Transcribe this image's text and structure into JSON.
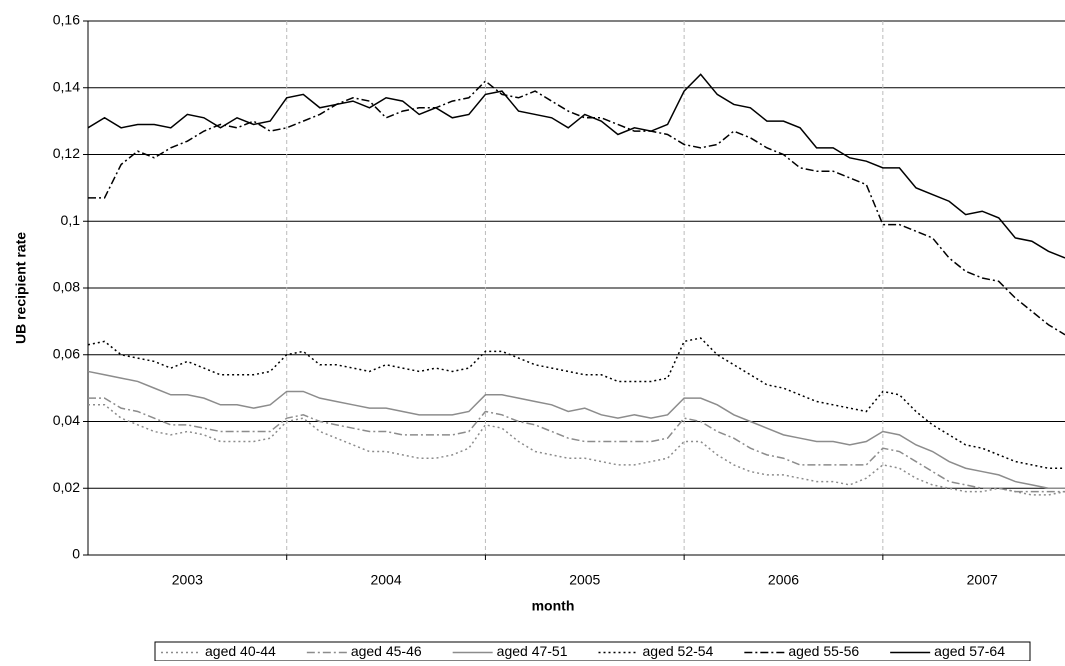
{
  "chart_data": {
    "type": "line",
    "y_label": "UB recipient rate",
    "x_label": "month",
    "categories": [
      null,
      null,
      null,
      null,
      null,
      null,
      "2003",
      null,
      null,
      null,
      null,
      null,
      null,
      null,
      null,
      null,
      null,
      null,
      "2004",
      null,
      null,
      null,
      null,
      null,
      null,
      null,
      null,
      null,
      null,
      null,
      "2005",
      null,
      null,
      null,
      null,
      null,
      null,
      null,
      null,
      null,
      null,
      null,
      "2006",
      null,
      null,
      null,
      null,
      null,
      null,
      null,
      null,
      null,
      null,
      null,
      "2007",
      null,
      null,
      null,
      null,
      null
    ],
    "ylim": [
      0,
      0.16
    ],
    "yticks": [
      0,
      {
        "value": 0.02,
        "label": "0,02"
      },
      {
        "value": 0.04,
        "label": "0,04"
      },
      {
        "value": 0.06,
        "label": "0,06"
      },
      {
        "value": 0.08,
        "label": "0,08"
      },
      {
        "value": 0.1,
        "label": "0,1"
      },
      {
        "value": 0.12,
        "label": "0,12"
      },
      {
        "value": 0.14,
        "label": "0,14"
      },
      {
        "value": 0.16,
        "label": "0,16"
      }
    ],
    "grid": true,
    "legend": "bottom",
    "series": [
      {
        "name": "aged 40-44",
        "color": "#8c8c8c",
        "dash": "2,3",
        "values": [
          0.045,
          0.045,
          0.041,
          0.039,
          0.037,
          0.036,
          0.037,
          0.036,
          0.034,
          0.034,
          0.034,
          0.035,
          0.04,
          0.041,
          0.037,
          0.035,
          0.033,
          0.031,
          0.031,
          0.03,
          0.029,
          0.029,
          0.03,
          0.032,
          0.039,
          0.038,
          0.034,
          0.031,
          0.03,
          0.029,
          0.029,
          0.028,
          0.027,
          0.027,
          0.028,
          0.029,
          0.034,
          0.034,
          0.03,
          0.027,
          0.025,
          0.024,
          0.024,
          0.023,
          0.022,
          0.022,
          0.021,
          0.023,
          0.027,
          0.026,
          0.023,
          0.021,
          0.02,
          0.019,
          0.019,
          0.02,
          0.019,
          0.018,
          0.018,
          0.019
        ]
      },
      {
        "name": "aged 45-46",
        "color": "#8c8c8c",
        "dash": "8,3,2,3",
        "values": [
          0.047,
          0.047,
          0.044,
          0.043,
          0.041,
          0.039,
          0.039,
          0.038,
          0.037,
          0.037,
          0.037,
          0.037,
          0.041,
          0.042,
          0.04,
          0.039,
          0.038,
          0.037,
          0.037,
          0.036,
          0.036,
          0.036,
          0.036,
          0.037,
          0.043,
          0.042,
          0.04,
          0.039,
          0.037,
          0.035,
          0.034,
          0.034,
          0.034,
          0.034,
          0.034,
          0.035,
          0.041,
          0.04,
          0.037,
          0.035,
          0.032,
          0.03,
          0.029,
          0.027,
          0.027,
          0.027,
          0.027,
          0.027,
          0.032,
          0.031,
          0.028,
          0.025,
          0.022,
          0.021,
          0.02,
          0.02,
          0.019,
          0.019,
          0.019,
          0.019
        ]
      },
      {
        "name": "aged 47-51",
        "color": "#8c8c8c",
        "dash": "none",
        "values": [
          0.055,
          0.054,
          0.053,
          0.052,
          0.05,
          0.048,
          0.048,
          0.047,
          0.045,
          0.045,
          0.044,
          0.045,
          0.049,
          0.049,
          0.047,
          0.046,
          0.045,
          0.044,
          0.044,
          0.043,
          0.042,
          0.042,
          0.042,
          0.043,
          0.048,
          0.048,
          0.047,
          0.046,
          0.045,
          0.043,
          0.044,
          0.042,
          0.041,
          0.042,
          0.041,
          0.042,
          0.047,
          0.047,
          0.045,
          0.042,
          0.04,
          0.038,
          0.036,
          0.035,
          0.034,
          0.034,
          0.033,
          0.034,
          0.037,
          0.036,
          0.033,
          0.031,
          0.028,
          0.026,
          0.025,
          0.024,
          0.022,
          0.021,
          0.02,
          0.02
        ]
      },
      {
        "name": "aged 52-54",
        "color": "#000000",
        "dash": "2,3",
        "values": [
          0.063,
          0.064,
          0.06,
          0.059,
          0.058,
          0.056,
          0.058,
          0.056,
          0.054,
          0.054,
          0.054,
          0.055,
          0.06,
          0.061,
          0.057,
          0.057,
          0.056,
          0.055,
          0.057,
          0.056,
          0.055,
          0.056,
          0.055,
          0.056,
          0.061,
          0.061,
          0.059,
          0.057,
          0.056,
          0.055,
          0.054,
          0.054,
          0.052,
          0.052,
          0.052,
          0.053,
          0.064,
          0.065,
          0.06,
          0.057,
          0.054,
          0.051,
          0.05,
          0.048,
          0.046,
          0.045,
          0.044,
          0.043,
          0.049,
          0.048,
          0.043,
          0.039,
          0.036,
          0.033,
          0.032,
          0.03,
          0.028,
          0.027,
          0.026,
          0.026
        ]
      },
      {
        "name": "aged 55-56",
        "color": "#000000",
        "dash": "8,3,2,3",
        "values": [
          0.107,
          0.107,
          0.117,
          0.121,
          0.119,
          0.122,
          0.124,
          0.127,
          0.129,
          0.128,
          0.13,
          0.127,
          0.128,
          0.13,
          0.132,
          0.135,
          0.137,
          0.136,
          0.131,
          0.133,
          0.134,
          0.134,
          0.136,
          0.137,
          0.142,
          0.138,
          0.137,
          0.139,
          0.136,
          0.133,
          0.131,
          0.131,
          0.129,
          0.127,
          0.127,
          0.126,
          0.123,
          0.122,
          0.123,
          0.127,
          0.125,
          0.122,
          0.12,
          0.116,
          0.115,
          0.115,
          0.113,
          0.111,
          0.099,
          0.099,
          0.097,
          0.095,
          0.089,
          0.085,
          0.083,
          0.082,
          0.077,
          0.073,
          0.069,
          0.066
        ]
      },
      {
        "name": "aged 57-64",
        "color": "#000000",
        "dash": "none",
        "values": [
          0.128,
          0.131,
          0.128,
          0.129,
          0.129,
          0.128,
          0.132,
          0.131,
          0.128,
          0.131,
          0.129,
          0.13,
          0.137,
          0.138,
          0.134,
          0.135,
          0.136,
          0.134,
          0.137,
          0.136,
          0.132,
          0.134,
          0.131,
          0.132,
          0.138,
          0.139,
          0.133,
          0.132,
          0.131,
          0.128,
          0.132,
          0.13,
          0.126,
          0.128,
          0.127,
          0.129,
          0.139,
          0.144,
          0.138,
          0.135,
          0.134,
          0.13,
          0.13,
          0.128,
          0.122,
          0.122,
          0.119,
          0.118,
          0.116,
          0.116,
          0.11,
          0.108,
          0.106,
          0.102,
          0.103,
          0.101,
          0.095,
          0.094,
          0.091,
          0.089
        ]
      }
    ]
  }
}
